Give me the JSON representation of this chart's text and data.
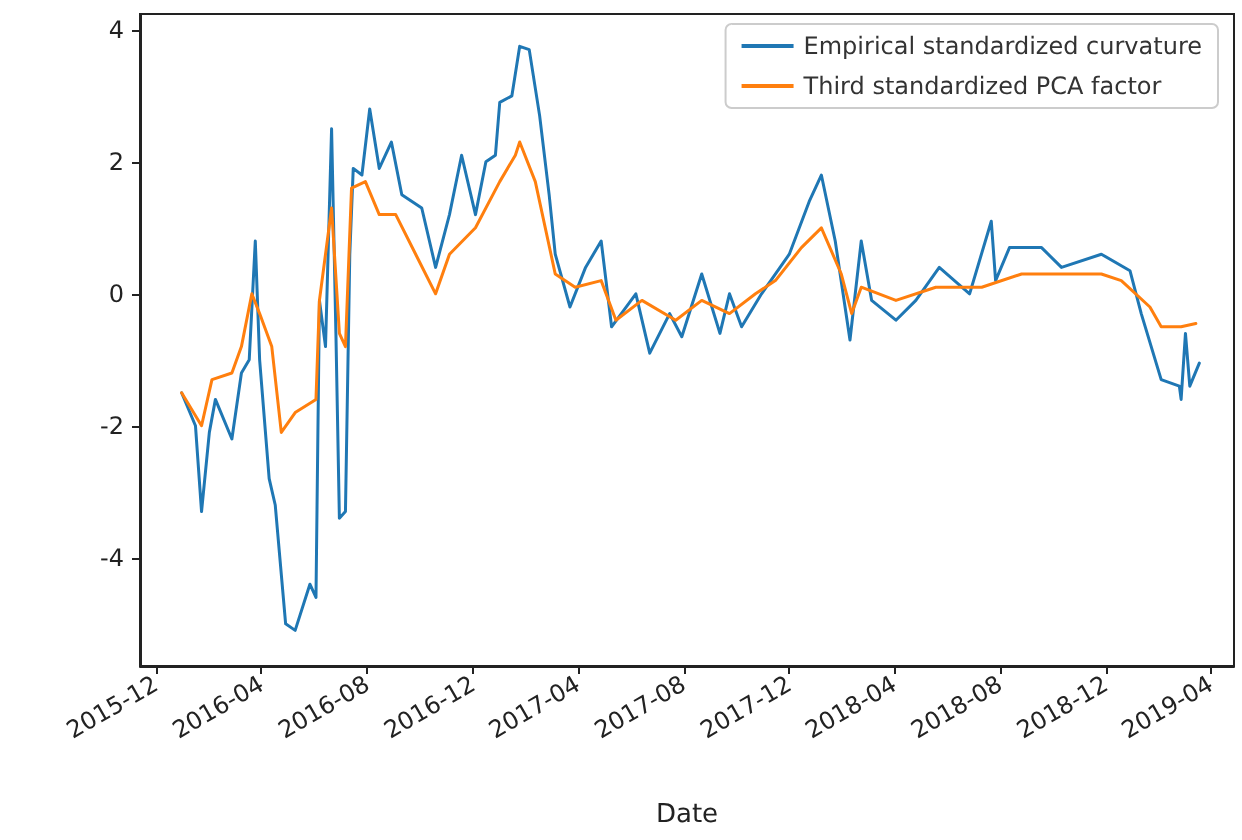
{
  "chart_data": {
    "type": "line",
    "xlabel": "Date",
    "xlim": [
      "2015-11-13",
      "2019-04-28"
    ],
    "xticks": [
      "2015-12",
      "2016-04",
      "2016-08",
      "2016-12",
      "2017-04",
      "2017-08",
      "2017-12",
      "2018-04",
      "2018-08",
      "2018-12",
      "2019-04"
    ],
    "ylim": [
      -5.64,
      4.24
    ],
    "yticks": [
      -4,
      -2,
      0,
      2,
      4
    ],
    "grid": false,
    "legend": "top right",
    "marker": "none",
    "line_style": "solid",
    "series": [
      {
        "name": "Empirical standardized curvature",
        "color": "#1f77b4",
        "x": [
          "2015-12-31",
          "2016-01-16",
          "2016-01-23",
          "2016-02-01",
          "2016-02-08",
          "2016-02-27",
          "2016-03-09",
          "2016-03-18",
          "2016-03-25",
          "2016-03-30",
          "2016-04-10",
          "2016-04-17",
          "2016-04-29",
          "2016-05-10",
          "2016-05-27",
          "2016-06-03",
          "2016-06-07",
          "2016-06-14",
          "2016-06-21",
          "2016-06-26",
          "2016-06-30",
          "2016-07-07",
          "2016-07-12",
          "2016-07-16",
          "2016-07-26",
          "2016-08-04",
          "2016-08-15",
          "2016-08-29",
          "2016-09-10",
          "2016-10-03",
          "2016-10-19",
          "2016-11-04",
          "2016-11-18",
          "2016-12-04",
          "2016-12-16",
          "2016-12-27",
          "2017-01-01",
          "2017-01-15",
          "2017-01-24",
          "2017-02-04",
          "2017-02-16",
          "2017-02-27",
          "2017-03-06",
          "2017-03-23",
          "2017-04-10",
          "2017-04-28",
          "2017-05-10",
          "2017-06-07",
          "2017-06-23",
          "2017-07-16",
          "2017-07-30",
          "2017-08-22",
          "2017-09-12",
          "2017-09-23",
          "2017-10-07",
          "2017-10-30",
          "2017-12-01",
          "2017-12-24",
          "2018-01-07",
          "2018-01-23",
          "2018-02-09",
          "2018-02-22",
          "2018-03-06",
          "2018-04-03",
          "2018-04-26",
          "2018-05-23",
          "2018-06-27",
          "2018-07-22",
          "2018-07-27",
          "2018-08-12",
          "2018-09-18",
          "2018-10-11",
          "2018-11-26",
          "2018-12-29",
          "2019-01-11",
          "2019-02-03",
          "2019-02-24",
          "2019-02-26",
          "2019-03-03",
          "2019-03-08",
          "2019-03-19"
        ],
        "values": [
          -1.5,
          -2.0,
          -3.3,
          -2.1,
          -1.6,
          -2.2,
          -1.2,
          -1.0,
          0.8,
          -1.0,
          -2.8,
          -3.2,
          -5.0,
          -5.1,
          -4.4,
          -4.6,
          -0.1,
          -0.8,
          2.5,
          -0.6,
          -3.4,
          -3.3,
          0.6,
          1.9,
          1.8,
          2.8,
          1.9,
          2.3,
          1.5,
          1.3,
          0.4,
          1.2,
          2.1,
          1.2,
          2.0,
          2.1,
          2.9,
          3.0,
          3.75,
          3.7,
          2.7,
          1.5,
          0.6,
          -0.2,
          0.4,
          0.8,
          -0.5,
          0.0,
          -0.9,
          -0.3,
          -0.65,
          0.3,
          -0.6,
          0.0,
          -0.5,
          0.0,
          0.6,
          1.4,
          1.8,
          0.8,
          -0.7,
          0.8,
          -0.1,
          -0.4,
          -0.1,
          0.4,
          0.0,
          1.1,
          0.2,
          0.7,
          0.7,
          0.4,
          0.6,
          0.35,
          -0.3,
          -1.3,
          -1.4,
          -1.6,
          -0.6,
          -1.4,
          -1.05
        ]
      },
      {
        "name": "Third standardized PCA factor",
        "color": "#ff7f0e",
        "x": [
          "2015-12-31",
          "2016-01-23",
          "2016-02-04",
          "2016-02-27",
          "2016-03-09",
          "2016-03-21",
          "2016-03-30",
          "2016-04-13",
          "2016-04-24",
          "2016-05-10",
          "2016-06-03",
          "2016-06-07",
          "2016-06-21",
          "2016-06-30",
          "2016-07-07",
          "2016-07-14",
          "2016-07-30",
          "2016-08-15",
          "2016-09-03",
          "2016-09-26",
          "2016-10-19",
          "2016-11-04",
          "2016-12-04",
          "2017-01-01",
          "2017-01-19",
          "2017-01-24",
          "2017-02-11",
          "2017-03-06",
          "2017-03-29",
          "2017-04-28",
          "2017-05-15",
          "2017-06-14",
          "2017-07-23",
          "2017-08-22",
          "2017-09-23",
          "2017-10-23",
          "2017-11-15",
          "2017-12-15",
          "2018-01-07",
          "2018-01-30",
          "2018-02-11",
          "2018-02-22",
          "2018-04-03",
          "2018-05-19",
          "2018-07-11",
          "2018-08-26",
          "2018-10-11",
          "2018-11-26",
          "2018-12-19",
          "2019-01-21",
          "2019-02-03",
          "2019-02-26",
          "2019-03-15"
        ],
        "values": [
          -1.5,
          -2.0,
          -1.3,
          -1.2,
          -0.8,
          0.0,
          -0.3,
          -0.8,
          -2.1,
          -1.8,
          -1.6,
          -0.1,
          1.3,
          -0.6,
          -0.8,
          1.6,
          1.7,
          1.2,
          1.2,
          0.6,
          0.0,
          0.6,
          1.0,
          1.7,
          2.1,
          2.3,
          1.7,
          0.3,
          0.1,
          0.2,
          -0.4,
          -0.1,
          -0.4,
          -0.1,
          -0.3,
          0.0,
          0.2,
          0.7,
          1.0,
          0.3,
          -0.3,
          0.1,
          -0.1,
          0.1,
          0.1,
          0.3,
          0.3,
          0.3,
          0.2,
          -0.2,
          -0.5,
          -0.5,
          -0.45
        ]
      }
    ]
  }
}
